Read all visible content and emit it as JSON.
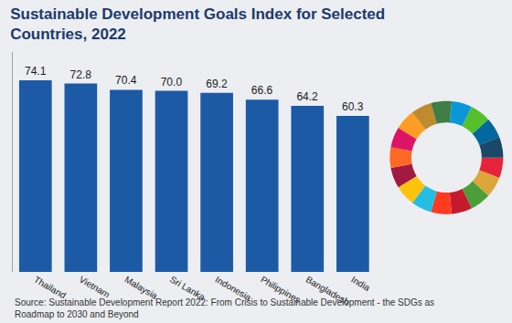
{
  "chart_data": {
    "type": "bar",
    "title": "Sustainable Development Goals Index for Selected Countries, 2022",
    "categories": [
      "Thailand",
      "Vietnam",
      "Malaysia",
      "Sri Lanka",
      "Indonesia",
      "Philippines",
      "Bangladesh",
      "India"
    ],
    "values": [
      74.1,
      72.8,
      70.4,
      70.0,
      69.2,
      66.6,
      64.2,
      60.3
    ],
    "value_labels": [
      "74.1",
      "72.8",
      "70.4",
      "70.0",
      "69.2",
      "66.6",
      "64.2",
      "60.3"
    ],
    "color": "#1d5aa6",
    "ylim": [
      0,
      85
    ],
    "grid": false,
    "data_labels": true,
    "tick_labels": "x",
    "annotations": [
      "Source: Sustainable Development Report 2022: From Crisis to Sustainable Development - the SDGs as Roadmap to 2030 and Beyond"
    ]
  }
}
